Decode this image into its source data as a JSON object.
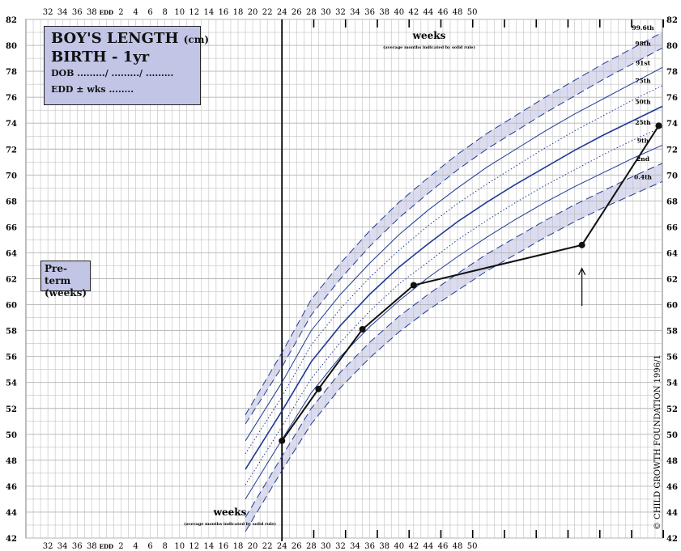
{
  "title_box": {
    "title": "BOY'S LENGTH",
    "title_unit": "(cm)",
    "subtitle": "BIRTH - 1yr",
    "dob_line": "DOB ........./ ........./ .........",
    "edd_line": "EDD ± wks ........"
  },
  "preterm_label_line1": "Pre-term",
  "preterm_label_line2": "(weeks)",
  "copyright": "© CHILD GROWTH FOUNDATION 1996/1",
  "top_axis": {
    "title": "weeks",
    "note": "(average months indicated by solid rule)"
  },
  "bottom_axis": {
    "title": "weeks",
    "note": "(average months indicated by solid rule)"
  },
  "colors": {
    "centile_line": "#1f3a93",
    "band_fill": "#dcdcf0",
    "grid": "#b4b4b4",
    "measurement": "#111111"
  },
  "chart_data": {
    "type": "line",
    "title": "BOY'S LENGTH (cm) BIRTH - 1yr",
    "xlabel": "weeks",
    "ylabel": "",
    "x_unit": "weeks relative to EDD (negative = pre-term)",
    "xlim": [
      -35,
      52
    ],
    "ylim": [
      42,
      82
    ],
    "x_tick_labels": [
      "32",
      "34",
      "36",
      "38",
      "EDD",
      "2",
      "4",
      "6",
      "8",
      "10",
      "12",
      "14",
      "16",
      "18",
      "20",
      "22",
      "24",
      "26",
      "28",
      "30",
      "32",
      "34",
      "36",
      "38",
      "40",
      "42",
      "44",
      "46",
      "48",
      "50"
    ],
    "y_ticks": [
      42,
      44,
      46,
      48,
      50,
      52,
      54,
      56,
      58,
      60,
      62,
      64,
      66,
      68,
      70,
      72,
      74,
      76,
      78,
      80,
      82
    ],
    "grid": true,
    "centile_x": [
      -5,
      0,
      4,
      8,
      12,
      16,
      20,
      24,
      28,
      32,
      36,
      40,
      44,
      48,
      52
    ],
    "centiles": [
      {
        "name": "99.6th",
        "values": [
          51.5,
          56.3,
          60.4,
          63.2,
          65.7,
          67.9,
          69.8,
          71.6,
          73.2,
          74.6,
          76.0,
          77.3,
          78.6,
          79.8,
          81.0
        ]
      },
      {
        "name": "98th",
        "values": [
          50.8,
          55.2,
          59.2,
          62.0,
          64.5,
          66.7,
          68.6,
          70.4,
          72.0,
          73.4,
          74.8,
          76.1,
          77.4,
          78.6,
          79.8
        ]
      },
      {
        "name": "91st",
        "values": [
          49.5,
          54.0,
          58.0,
          60.8,
          63.2,
          65.4,
          67.3,
          69.0,
          70.6,
          72.0,
          73.4,
          74.7,
          75.9,
          77.1,
          78.3
        ]
      },
      {
        "name": "75th",
        "values": [
          48.5,
          52.9,
          56.9,
          59.7,
          62.1,
          64.2,
          66.1,
          67.8,
          69.3,
          70.7,
          72.1,
          73.4,
          74.6,
          75.8,
          76.9
        ]
      },
      {
        "name": "50th",
        "values": [
          47.3,
          51.8,
          55.6,
          58.4,
          60.8,
          62.9,
          64.7,
          66.4,
          67.9,
          69.3,
          70.6,
          71.9,
          73.1,
          74.2,
          75.3
        ]
      },
      {
        "name": "25th",
        "values": [
          46.1,
          50.6,
          54.3,
          57.1,
          59.5,
          61.6,
          63.3,
          65.0,
          66.5,
          67.9,
          69.2,
          70.4,
          71.6,
          72.7,
          73.7
        ]
      },
      {
        "name": "9th",
        "values": [
          45.0,
          49.6,
          53.2,
          56.0,
          58.3,
          60.3,
          62.1,
          63.7,
          65.2,
          66.6,
          67.9,
          69.1,
          70.2,
          71.3,
          72.3
        ]
      },
      {
        "name": "2nd",
        "values": [
          43.6,
          48.3,
          52.0,
          54.8,
          57.1,
          59.1,
          60.8,
          62.4,
          63.9,
          65.2,
          66.5,
          67.7,
          68.8,
          69.9,
          70.9
        ]
      },
      {
        "name": "0.4th",
        "values": [
          42.5,
          47.2,
          50.8,
          53.6,
          55.9,
          57.9,
          59.6,
          61.1,
          62.6,
          63.9,
          65.2,
          66.4,
          67.5,
          68.5,
          69.5
        ]
      }
    ],
    "series": [
      {
        "name": "",
        "x": [
          0,
          5,
          11,
          18,
          41,
          51.5
        ],
        "y": [
          49.5,
          53.5,
          58.1,
          61.5,
          64.6,
          73.8
        ]
      }
    ],
    "annotations": [
      {
        "text": "↑",
        "x": 41,
        "y": 61
      }
    ]
  }
}
